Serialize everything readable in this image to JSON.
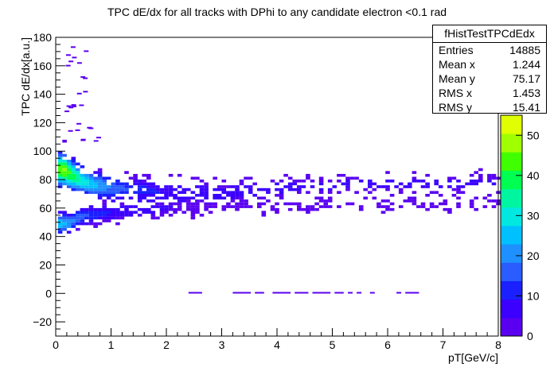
{
  "chart_data": {
    "type": "heatmap",
    "title": "TPC dE/dx for all tracks with DPhi to any candidate electron <0.1 rad",
    "xlabel": "pT[GeV/c]",
    "ylabel": "TPC dE/dx[a.u.]",
    "xlim": [
      0,
      8
    ],
    "ylim": [
      -30,
      180
    ],
    "x_ticks": [
      "0",
      "1",
      "2",
      "3",
      "4",
      "5",
      "6",
      "7",
      "8"
    ],
    "y_ticks": [
      "−20",
      "0",
      "20",
      "40",
      "60",
      "80",
      "100",
      "120",
      "140",
      "160",
      "180"
    ],
    "z_ticks": [
      "0",
      "10",
      "20",
      "30",
      "40",
      "50"
    ],
    "zlim": [
      0,
      55
    ],
    "bands": [
      {
        "name": "upper",
        "center": [
          [
            0.1,
            86
          ],
          [
            0.3,
            81
          ],
          [
            0.6,
            76
          ],
          [
            1.0,
            73
          ],
          [
            2.0,
            70
          ],
          [
            3.0,
            70
          ],
          [
            4.0,
            73
          ],
          [
            5.0,
            75
          ],
          [
            6.0,
            76
          ],
          [
            8.0,
            77
          ]
        ],
        "peak_count": 54
      },
      {
        "name": "lower",
        "center": [
          [
            0.2,
            48
          ],
          [
            0.4,
            53
          ],
          [
            1.0,
            56
          ],
          [
            2.0,
            58
          ],
          [
            4.0,
            61
          ],
          [
            6.0,
            62
          ],
          [
            8.0,
            63
          ]
        ],
        "peak_count": 30
      }
    ],
    "zero_row_x_range": [
      2.4,
      6.6
    ],
    "stats": {
      "name": "fHistTestTPCdEdx",
      "rows": [
        {
          "label": "Entries",
          "value": "14885"
        },
        {
          "label": "Mean x",
          "value": "1.244"
        },
        {
          "label": "Mean y",
          "value": "75.17"
        },
        {
          "label": "RMS x",
          "value": "1.453"
        },
        {
          "label": "RMS y",
          "value": "15.41"
        }
      ]
    },
    "palette": [
      "#5a00f0",
      "#3b00ff",
      "#1a20ff",
      "#2a5cff",
      "#1e90ff",
      "#00c0ff",
      "#00e8e0",
      "#00f5a0",
      "#00ff50",
      "#40ff00",
      "#a0ff00",
      "#e0ff00"
    ]
  }
}
